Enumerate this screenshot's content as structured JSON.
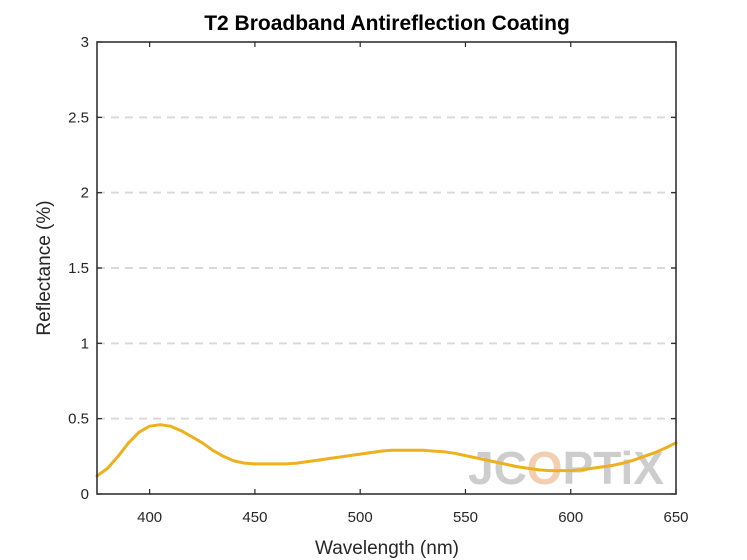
{
  "colors": {
    "series": "#EDB120",
    "grid": "#D9D9D9",
    "axis": "#262626",
    "watermark_gray": "#C8C8C8",
    "watermark_accent": "#F3C9A8"
  },
  "chart_data": {
    "type": "line",
    "title": "T2 Broadband Antireflection Coating",
    "xlabel": "Wavelength (nm)",
    "ylabel": "Reflectance (%)",
    "xlim": [
      375,
      650
    ],
    "ylim": [
      0,
      3
    ],
    "xticks": [
      400,
      450,
      500,
      550,
      600,
      650
    ],
    "yticks": [
      0,
      0.5,
      1,
      1.5,
      2,
      2.5,
      3
    ],
    "ytick_labels": [
      "0",
      "0.5",
      "1",
      "1.5",
      "2",
      "2.5",
      "3"
    ],
    "grid": "horizontal-dashed",
    "series": [
      {
        "x": [
          375,
          380,
          385,
          390,
          395,
          400,
          405,
          410,
          415,
          420,
          425,
          430,
          435,
          440,
          445,
          450,
          455,
          460,
          465,
          470,
          475,
          480,
          485,
          490,
          495,
          500,
          505,
          510,
          515,
          520,
          525,
          530,
          535,
          540,
          545,
          550,
          555,
          560,
          565,
          570,
          575,
          580,
          585,
          590,
          595,
          600,
          605,
          610,
          615,
          620,
          625,
          630,
          635,
          640,
          645,
          650
        ],
        "y": [
          0.12,
          0.17,
          0.25,
          0.34,
          0.41,
          0.45,
          0.46,
          0.45,
          0.42,
          0.38,
          0.34,
          0.29,
          0.25,
          0.22,
          0.205,
          0.2,
          0.2,
          0.2,
          0.2,
          0.205,
          0.215,
          0.225,
          0.235,
          0.245,
          0.255,
          0.265,
          0.275,
          0.285,
          0.29,
          0.29,
          0.29,
          0.29,
          0.285,
          0.28,
          0.27,
          0.255,
          0.24,
          0.225,
          0.21,
          0.195,
          0.18,
          0.17,
          0.16,
          0.155,
          0.155,
          0.155,
          0.16,
          0.17,
          0.18,
          0.19,
          0.205,
          0.225,
          0.25,
          0.275,
          0.305,
          0.34
        ]
      }
    ]
  },
  "watermark": {
    "text_a": "JC",
    "text_b": "O",
    "text_c": "PTiX"
  }
}
